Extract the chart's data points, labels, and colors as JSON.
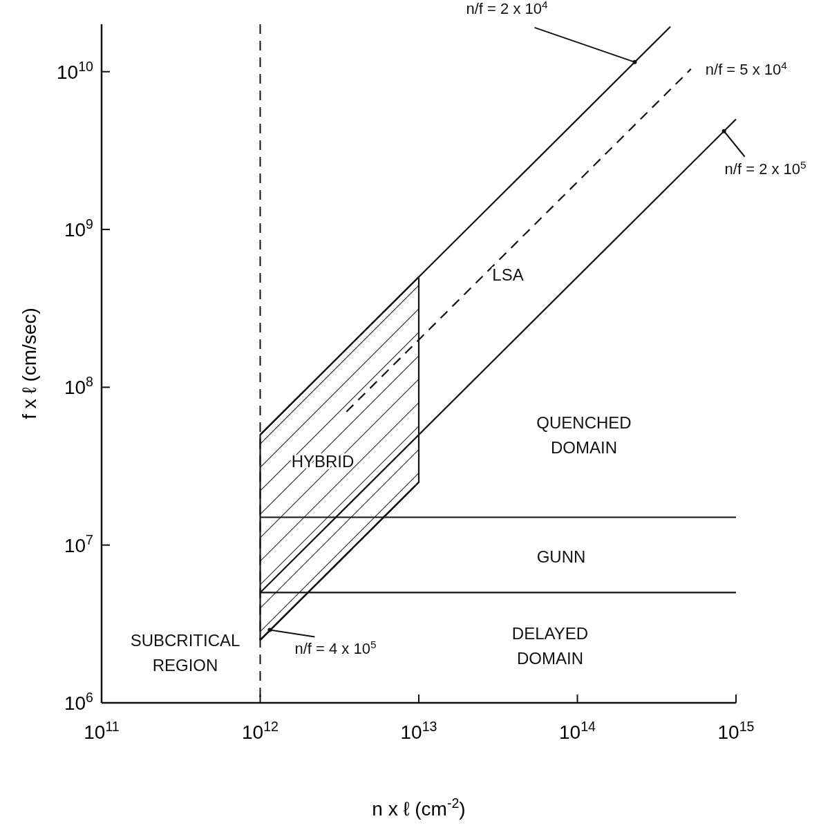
{
  "chart_data": {
    "type": "line",
    "xlabel": "n x ℓ (cm$^{-2}$)",
    "ylabel": "f x ℓ (cm/sec)",
    "log": "xy",
    "grid": false,
    "marker": "none",
    "xlim": [
      100000000000.0,
      1000000000000000.0
    ],
    "ylim": [
      1000000.0,
      20000000000.0
    ],
    "xticks": [
      {
        "value": 100000000000.0,
        "label": "10$^{11}$"
      },
      {
        "value": 1000000000000.0,
        "label": "10$^{12}$"
      },
      {
        "value": 10000000000000.0,
        "label": "10$^{13}$"
      },
      {
        "value": 100000000000000.0,
        "label": "10$^{14}$"
      },
      {
        "value": 1000000000000000.0,
        "label": "10$^{15}$"
      }
    ],
    "yticks": [
      {
        "value": 1000000.0,
        "label": "10$^{6}$"
      },
      {
        "value": 10000000.0,
        "label": "10$^{7}$"
      },
      {
        "value": 100000000.0,
        "label": "10$^{8}$"
      },
      {
        "value": 1000000000.0,
        "label": "10$^{9}$"
      },
      {
        "value": 10000000000.0,
        "label": "10$^{10}$"
      }
    ],
    "series": [
      {
        "color": "#111111",
        "x": [
          1000000000000.0,
          10000000000000.0,
          386000000000000.0
        ],
        "values": [
          50000000.0,
          500000000.0,
          19300000000.0
        ]
      },
      {
        "color": "#111111",
        "x": [
          3500000000000.0,
          520000000000000.0
        ],
        "values": [
          70000000.0,
          10400000000.0
        ],
        "line_style": "dashed"
      },
      {
        "color": "#111111",
        "x": [
          1000000000000.0,
          1000000000000000.0
        ],
        "values": [
          5000000.0,
          5000000000.0
        ]
      },
      {
        "color": "#111111",
        "x": [
          1000000000000.0,
          10000000000000.0
        ],
        "values": [
          2500000.0,
          25000000.0
        ]
      },
      {
        "color": "#111111",
        "x": [
          1000000000000.0,
          1000000000000000.0
        ],
        "values": [
          15000000.0,
          15000000.0
        ]
      },
      {
        "color": "#111111",
        "x": [
          1000000000000.0,
          1000000000000000.0
        ],
        "values": [
          5000000.0,
          5000000.0
        ]
      }
    ],
    "ref_lines": [
      {
        "axis": "x",
        "value": 1000000000000.0,
        "line_style": "dashed",
        "color": "#111111"
      }
    ],
    "annotations": [
      {
        "text": "n/f = 2 x 10$^{4}$",
        "x": 230000000000000.0,
        "y": 11500000000.0
      },
      {
        "text": "n/f = 5 x 10$^{4}$",
        "x": 520000000000000.0,
        "y": 10400000000.0
      },
      {
        "text": "n/f = 2 x 10$^{5}$",
        "x": 840000000000000.0,
        "y": 4200000000.0
      },
      {
        "text": "n/f = 4 x 10$^{5}$",
        "x": 1150000000000.0,
        "y": 2900000.0
      },
      "LSA",
      "QUENCHED DOMAIN",
      "GUNN",
      "DELAYED DOMAIN",
      "SUBCRITICAL REGION",
      "HYBRID"
    ]
  }
}
